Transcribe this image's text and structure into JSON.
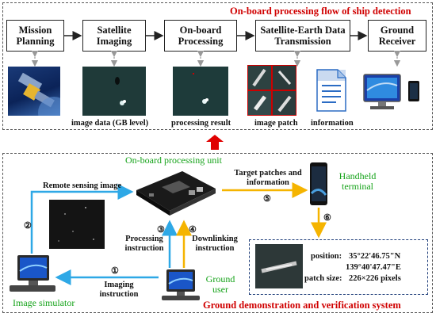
{
  "top_panel": {
    "title": "On-board processing flow of ship detection",
    "steps": [
      {
        "label": "Mission Planning"
      },
      {
        "label": "Satellite Imaging"
      },
      {
        "label": "On-board Processing"
      },
      {
        "label": "Satellite-Earth Data Transmission"
      },
      {
        "label": "Ground Receiver"
      }
    ],
    "captions": {
      "image_data": "image data (GB level)",
      "processing_result": "processing result",
      "image_patch": "image patch",
      "information": "information"
    }
  },
  "bottom_panel": {
    "title": "Ground demonstration and verification system",
    "onboard_unit": "On-board processing unit",
    "handheld_terminal": "Handheld terminal",
    "image_simulator": "Image simulator",
    "ground_user": "Ground user",
    "remote_sensing_image": "Remote sensing image",
    "target_patches": "Target patches and information",
    "processing_instruction": "Processing instruction",
    "downlinking_instruction": "Downlinking instruction",
    "imaging_instruction": "Imaging instruction",
    "numbers": {
      "n1": "①",
      "n2": "②",
      "n3": "③",
      "n4": "④",
      "n5": "⑤",
      "n6": "⑥"
    },
    "result": {
      "position_label": "position:",
      "lat": "35°22'46.75\"N",
      "lon": "139°40'47.47\"E",
      "patch_label": "patch size:",
      "patch_value": "226×226 pixels"
    }
  },
  "colors": {
    "title_red": "#d00000",
    "green_label": "#16a31a",
    "blue_arrow": "#2ea8e6",
    "yellow_arrow": "#f5b400",
    "red_arrow": "#e00000"
  }
}
